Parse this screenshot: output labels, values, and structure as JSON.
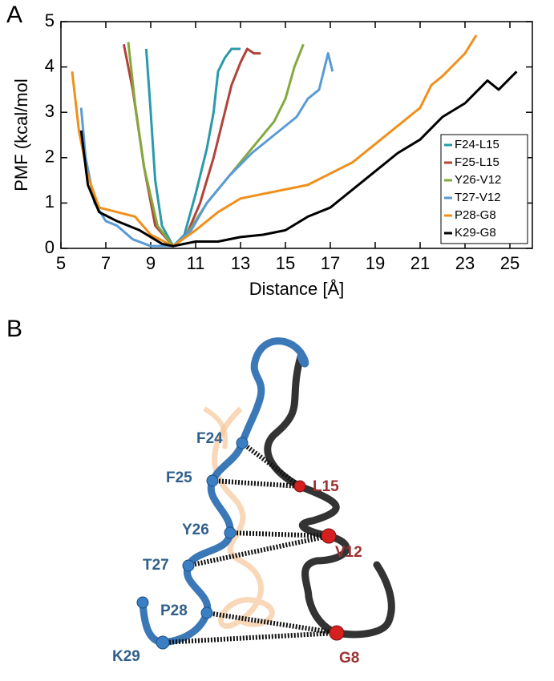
{
  "panel_labels": [
    "A",
    "B"
  ],
  "chart_data": {
    "type": "line",
    "x_label": "Distance [Å]",
    "y_label": "PMF (kcal/mol",
    "xlim": [
      5,
      26
    ],
    "xticks": [
      5,
      7,
      9,
      11,
      13,
      15,
      17,
      19,
      21,
      23,
      25
    ],
    "ylim": [
      0,
      5
    ],
    "yticks": [
      0,
      1,
      2,
      3,
      4,
      5
    ],
    "legend": "lower-right",
    "series": [
      {
        "name": "F24-L15",
        "color": "#2a9aaa",
        "x": [
          8.8,
          9.0,
          9.2,
          9.5,
          10,
          10.5,
          11,
          11.5,
          11.8,
          12,
          12.3,
          12.6,
          13
        ],
        "values": [
          4.4,
          3.0,
          1.5,
          0.5,
          0.05,
          0.3,
          1.2,
          2.2,
          3.0,
          3.9,
          4.2,
          4.4,
          4.4
        ]
      },
      {
        "name": "F25-L15",
        "color": "#b0433a",
        "x": [
          7.8,
          8.2,
          8.7,
          9.2,
          10,
          10.6,
          11.2,
          11.8,
          12.2,
          12.6,
          13,
          13.3,
          13.6,
          13.9
        ],
        "values": [
          4.5,
          3.5,
          1.8,
          0.5,
          0.05,
          0.3,
          1.0,
          2.0,
          2.8,
          3.6,
          4.1,
          4.4,
          4.3,
          4.3
        ]
      },
      {
        "name": "Y26-V12",
        "color": "#86a83e",
        "x": [
          8,
          8.3,
          8.7,
          9.3,
          10,
          10.6,
          11.5,
          12.5,
          13.5,
          14.5,
          15,
          15.4,
          15.8
        ],
        "values": [
          4.55,
          3.2,
          1.8,
          0.5,
          0.05,
          0.3,
          1.0,
          1.6,
          2.2,
          2.8,
          3.3,
          4.0,
          4.5
        ]
      },
      {
        "name": "T27-V12",
        "color": "#5b9bd5",
        "x": [
          5.9,
          6.1,
          6.5,
          7,
          7.5,
          8.2,
          9,
          10,
          10.8,
          11.5,
          12.5,
          13.5,
          14.5,
          15.5,
          16,
          16.5,
          16.9,
          17.1
        ],
        "values": [
          3.1,
          2.0,
          1.0,
          0.6,
          0.5,
          0.2,
          0.05,
          0.05,
          0.4,
          1.0,
          1.6,
          2.1,
          2.5,
          2.9,
          3.3,
          3.5,
          4.3,
          3.9
        ]
      },
      {
        "name": "P28-G8",
        "color": "#f0901c",
        "x": [
          5.5,
          5.8,
          6.2,
          6.7,
          7.5,
          8.3,
          9,
          10,
          11,
          12,
          13,
          14,
          16,
          18,
          19,
          20,
          21,
          21.5,
          22,
          23,
          23.5
        ],
        "values": [
          3.9,
          2.6,
          1.6,
          0.9,
          0.8,
          0.7,
          0.3,
          0.05,
          0.4,
          0.8,
          1.1,
          1.2,
          1.4,
          1.9,
          2.3,
          2.7,
          3.1,
          3.6,
          3.8,
          4.3,
          4.7
        ]
      },
      {
        "name": "K29-G8",
        "color": "#000000",
        "x": [
          5.9,
          6.2,
          6.7,
          7.5,
          8.5,
          9.5,
          10,
          11,
          12,
          13,
          14,
          15,
          16,
          17,
          18,
          19,
          20,
          21,
          22,
          23,
          24,
          24.5,
          25.3
        ],
        "values": [
          2.6,
          1.4,
          0.8,
          0.6,
          0.4,
          0.1,
          0.05,
          0.15,
          0.15,
          0.25,
          0.3,
          0.4,
          0.7,
          0.9,
          1.3,
          1.7,
          2.1,
          2.4,
          2.9,
          3.2,
          3.7,
          3.5,
          3.9
        ]
      }
    ]
  },
  "diagram": {
    "blue_labels": [
      "F24",
      "F25",
      "Y26",
      "T27",
      "P28",
      "K29"
    ],
    "red_labels": [
      "L15",
      "V12",
      "G8"
    ]
  }
}
